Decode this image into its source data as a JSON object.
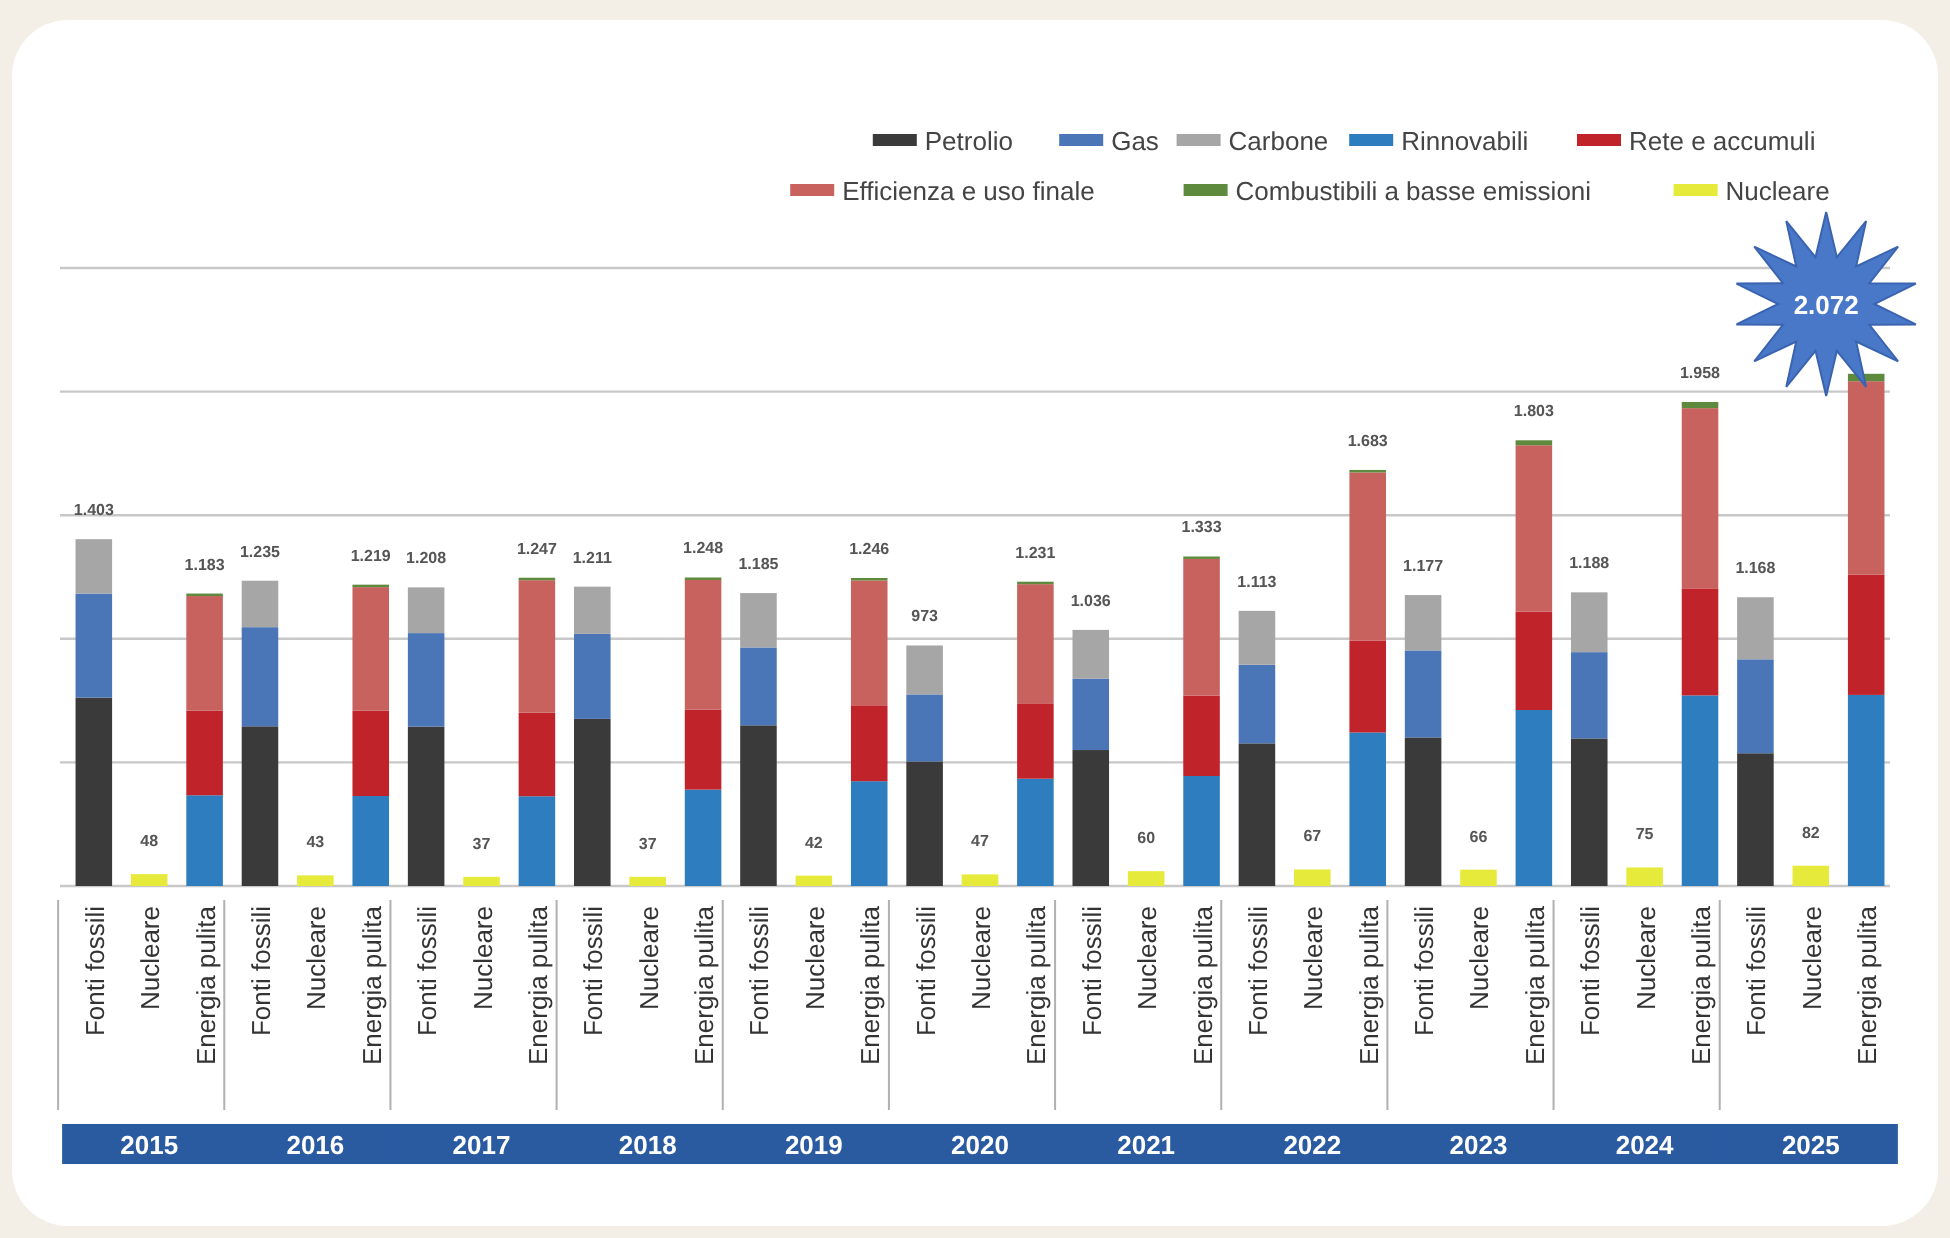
{
  "chart_data": {
    "type": "bar",
    "stacked": true,
    "grid": "y",
    "legend": "top right",
    "ylim": [
      0,
      2500
    ],
    "yticks": [
      {
        "value": 0,
        "label": null
      },
      {
        "value": 500,
        "label": null
      },
      {
        "value": 1000,
        "label": null
      },
      {
        "value": 1500,
        "label": null
      },
      {
        "value": 2000,
        "label": null
      },
      {
        "value": 2500,
        "label": null
      }
    ],
    "tick_labels": "x",
    "categories": [
      "Fonti fossili",
      "Nucleare",
      "Energia pulita",
      "Fonti fossili",
      "Nucleare",
      "Energia pulita",
      "Fonti fossili",
      "Nucleare",
      "Energia pulita",
      "Fonti fossili",
      "Nucleare",
      "Energia pulita",
      "Fonti fossili",
      "Nucleare",
      "Energia pulita",
      "Fonti fossili",
      "Nucleare",
      "Energia pulita",
      "Fonti fossili",
      "Nucleare",
      "Energia pulita",
      "Fonti fossili",
      "Nucleare",
      "Energia pulita",
      "Fonti fossili",
      "Nucleare",
      "Energia pulita",
      "Fonti fossili",
      "Nucleare",
      "Energia pulita",
      "Fonti fossili",
      "Nucleare",
      "Energia pulita"
    ],
    "annotations": [
      "2015",
      "2016",
      "2017",
      "2018",
      "2019",
      "2020",
      "2021",
      "2022",
      "2023",
      "2024",
      "2025"
    ],
    "series": [
      {
        "name": "Petrolio",
        "color": "#3a3a3a",
        "values": [
          762,
          null,
          null,
          646,
          null,
          null,
          645,
          null,
          null,
          676,
          null,
          null,
          650,
          null,
          null,
          504,
          null,
          null,
          550,
          null,
          null,
          577,
          null,
          null,
          601,
          null,
          null,
          597,
          null,
          null,
          537,
          null,
          null
        ]
      },
      {
        "name": "Gas",
        "color": "#4a76b8",
        "values": [
          421,
          null,
          null,
          401,
          null,
          null,
          378,
          null,
          null,
          344,
          null,
          null,
          315,
          null,
          null,
          271,
          null,
          null,
          289,
          null,
          null,
          318,
          null,
          null,
          352,
          null,
          null,
          349,
          null,
          null,
          380,
          null,
          null
        ]
      },
      {
        "name": "Carbone",
        "color": "#a6a6a6",
        "values": [
          220,
          null,
          null,
          188,
          null,
          null,
          185,
          null,
          null,
          191,
          null,
          null,
          220,
          null,
          null,
          198,
          null,
          null,
          197,
          null,
          null,
          218,
          null,
          null,
          224,
          null,
          null,
          242,
          null,
          null,
          251,
          null,
          null
        ]
      },
      {
        "name": "Rinnovabili",
        "color": "#2e7dbf",
        "values": [
          null,
          null,
          367,
          null,
          null,
          364,
          null,
          null,
          363,
          null,
          null,
          390,
          null,
          null,
          424,
          null,
          null,
          434,
          null,
          null,
          445,
          null,
          null,
          621,
          null,
          null,
          712,
          null,
          null,
          771,
          null,
          null,
          773
        ]
      },
      {
        "name": "Rete e accumuli",
        "color": "#c0232a",
        "values": [
          null,
          null,
          342,
          null,
          null,
          345,
          null,
          null,
          338,
          null,
          null,
          324,
          null,
          null,
          307,
          null,
          null,
          305,
          null,
          null,
          325,
          null,
          null,
          372,
          null,
          null,
          398,
          null,
          null,
          433,
          null,
          null,
          487
        ]
      },
      {
        "name": "Efficienza e uso finale",
        "color": "#c8625f",
        "values": [
          null,
          null,
          464,
          null,
          null,
          500,
          null,
          null,
          536,
          null,
          null,
          524,
          null,
          null,
          505,
          null,
          null,
          482,
          null,
          null,
          553,
          null,
          null,
          680,
          null,
          null,
          673,
          null,
          null,
          729,
          null,
          null,
          782
        ]
      },
      {
        "name": "Combustibili a basse emissioni",
        "color": "#5d8a3c",
        "values": [
          null,
          null,
          10,
          null,
          null,
          10,
          null,
          null,
          10,
          null,
          null,
          10,
          null,
          null,
          10,
          null,
          null,
          10,
          null,
          null,
          10,
          null,
          null,
          10,
          null,
          null,
          20,
          null,
          null,
          25,
          null,
          null,
          30
        ]
      },
      {
        "name": "Nucleare",
        "color": "#e6ea3a",
        "values": [
          null,
          48,
          null,
          null,
          43,
          null,
          null,
          37,
          null,
          null,
          37,
          null,
          null,
          42,
          null,
          null,
          47,
          null,
          null,
          60,
          null,
          null,
          67,
          null,
          null,
          66,
          null,
          null,
          75,
          null,
          null,
          82,
          null
        ],
        "value_labels": [
          null,
          "48",
          null,
          null,
          "43",
          null,
          null,
          "37",
          null,
          null,
          "37",
          null,
          null,
          "42",
          null,
          null,
          "47",
          null,
          null,
          "60",
          null,
          null,
          "67",
          null,
          null,
          "66",
          null,
          null,
          "75",
          null,
          null,
          "82",
          null
        ]
      }
    ],
    "totals": [
      "1.403",
      null,
      "1.183",
      "1.235",
      null,
      "1.219",
      "1.208",
      null,
      "1.247",
      "1.211",
      null,
      "1.248",
      "1.185",
      null,
      "1.246",
      "973",
      null,
      "1.231",
      "1.036",
      null,
      "1.333",
      "1.113",
      null,
      "1.683",
      "1.177",
      null,
      "1.803",
      "1.188",
      null,
      "1.958",
      "1.168",
      null,
      "2.072"
    ]
  }
}
